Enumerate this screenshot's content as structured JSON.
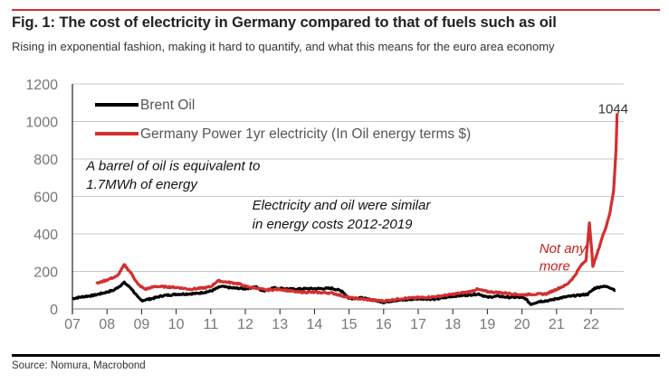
{
  "figure": {
    "title": "Fig. 1: The cost of electricity in Germany compared to that of fuels such as oil",
    "subtitle": "Rising in exponential fashion, making it hard to quantify, and what this means for the euro area economy",
    "source": "Source: Nomura, Macrobond",
    "accent_color": "#d32f2f"
  },
  "chart_data": {
    "type": "line",
    "title": "Fig. 1: The cost of electricity in Germany compared to that of fuels such as oil",
    "xlabel": "",
    "ylabel": "",
    "xlim": [
      2007,
      2022.95
    ],
    "ylim": [
      0,
      1200
    ],
    "yticks": [
      0,
      200,
      400,
      600,
      800,
      1000,
      1200
    ],
    "ytick_labels": [
      "0",
      "200",
      "400",
      "600",
      "800",
      "1000",
      "1200"
    ],
    "xticks": [
      2007,
      2008,
      2009,
      2010,
      2011,
      2012,
      2013,
      2014,
      2015,
      2016,
      2017,
      2018,
      2019,
      2020,
      2021,
      2022
    ],
    "xtick_labels": [
      "07",
      "08",
      "09",
      "10",
      "11",
      "12",
      "13",
      "14",
      "15",
      "16",
      "17",
      "18",
      "19",
      "20",
      "21",
      "22"
    ],
    "grid": "horizontal",
    "legend_position": "top-left",
    "series": [
      {
        "name": "Brent Oil",
        "color": "#000000",
        "x": [
          2007.0,
          2007.3,
          2007.6,
          2007.9,
          2008.2,
          2008.5,
          2008.7,
          2008.9,
          2009.0,
          2009.3,
          2009.6,
          2010.0,
          2010.3,
          2010.6,
          2011.0,
          2011.3,
          2011.6,
          2012.0,
          2012.3,
          2012.5,
          2012.8,
          2013.0,
          2013.4,
          2013.8,
          2014.2,
          2014.5,
          2014.8,
          2015.0,
          2015.3,
          2015.6,
          2015.9,
          2016.0,
          2016.3,
          2016.6,
          2017.0,
          2017.5,
          2018.0,
          2018.5,
          2018.75,
          2019.0,
          2019.3,
          2019.6,
          2019.9,
          2020.1,
          2020.25,
          2020.5,
          2020.8,
          2021.0,
          2021.3,
          2021.6,
          2021.9,
          2022.1,
          2022.3,
          2022.5,
          2022.7
        ],
        "values": [
          55,
          65,
          72,
          85,
          100,
          140,
          110,
          60,
          45,
          55,
          70,
          78,
          80,
          82,
          95,
          120,
          112,
          108,
          118,
          95,
          112,
          110,
          105,
          108,
          108,
          110,
          95,
          55,
          60,
          50,
          40,
          35,
          45,
          48,
          55,
          52,
          68,
          75,
          80,
          62,
          68,
          62,
          62,
          55,
          25,
          40,
          45,
          55,
          65,
          72,
          78,
          110,
          120,
          118,
          100
        ]
      },
      {
        "name": "Germany Power 1yr electricity (In Oil energy terms $)",
        "color": "#d32f2f",
        "x": [
          2007.7,
          2008.0,
          2008.3,
          2008.5,
          2008.7,
          2008.9,
          2009.1,
          2009.4,
          2009.7,
          2010.0,
          2010.4,
          2010.8,
          2011.0,
          2011.2,
          2011.5,
          2011.8,
          2012.0,
          2012.3,
          2012.6,
          2013.0,
          2013.5,
          2014.0,
          2014.5,
          2015.0,
          2015.5,
          2016.0,
          2016.5,
          2017.0,
          2017.5,
          2018.0,
          2018.5,
          2018.7,
          2019.0,
          2019.5,
          2020.0,
          2020.3,
          2020.7,
          2021.0,
          2021.3,
          2021.5,
          2021.7,
          2021.85,
          2021.95,
          2022.05,
          2022.15,
          2022.3,
          2022.45,
          2022.55,
          2022.65,
          2022.72,
          2022.75
        ],
        "values": [
          135,
          155,
          175,
          235,
          190,
          130,
          105,
          120,
          118,
          115,
          105,
          112,
          118,
          150,
          142,
          135,
          120,
          112,
          100,
          105,
          90,
          88,
          85,
          60,
          50,
          42,
          55,
          60,
          65,
          78,
          92,
          105,
          92,
          85,
          75,
          78,
          80,
          105,
          130,
          170,
          230,
          260,
          460,
          230,
          280,
          370,
          450,
          520,
          630,
          850,
          1044
        ]
      }
    ],
    "annotations": [
      {
        "text": "1044",
        "x": 2022.2,
        "y": 1044,
        "kind": "data-label"
      },
      {
        "text": "A barrel of oil is equivalent to",
        "x": 2007.4,
        "y": 740
      },
      {
        "text": "1.7MWh of energy",
        "x": 2007.4,
        "y": 640
      },
      {
        "text": "Electricity and oil were similar",
        "x": 2012.2,
        "y": 530
      },
      {
        "text": "in energy costs 2012-2019",
        "x": 2012.2,
        "y": 430
      },
      {
        "text": "Not any",
        "x": 2020.5,
        "y": 300,
        "color": "#c41e1e"
      },
      {
        "text": "more",
        "x": 2020.5,
        "y": 205,
        "color": "#c41e1e"
      }
    ]
  }
}
